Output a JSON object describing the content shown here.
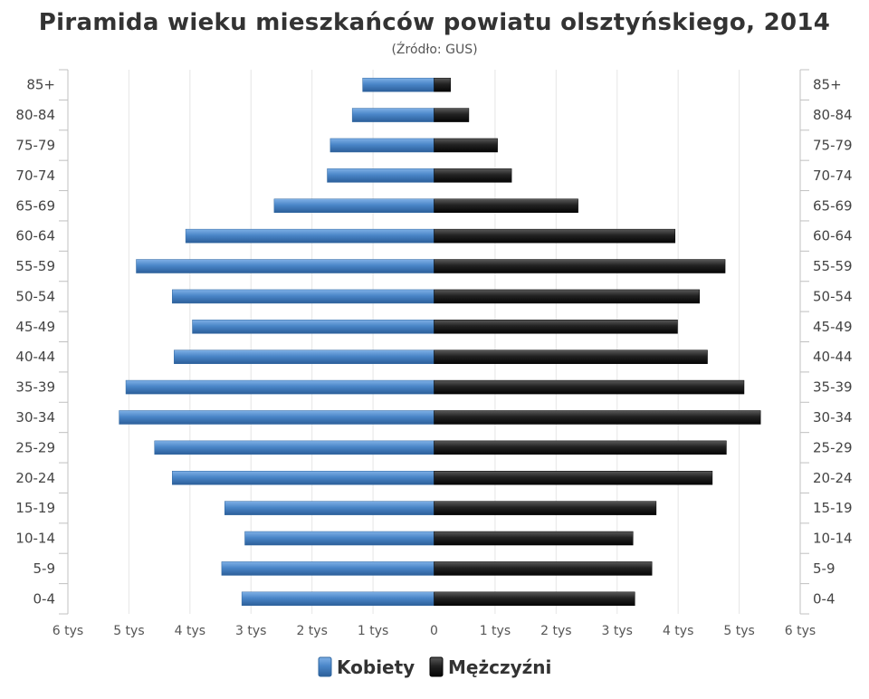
{
  "chart_data": {
    "type": "bar",
    "orientation": "horizontal",
    "title": "Piramida wieku mieszkańców powiatu olsztyńskiego, 2014",
    "subtitle": "(Źródło: GUS)",
    "categories": [
      "85+",
      "80-84",
      "75-79",
      "70-74",
      "65-69",
      "60-64",
      "55-59",
      "50-54",
      "45-49",
      "40-44",
      "35-39",
      "30-34",
      "25-29",
      "20-24",
      "15-19",
      "10-14",
      "5-9",
      "0-4"
    ],
    "series": [
      {
        "name": "Kobiety",
        "color": "#4a86c8",
        "side": "left",
        "values": [
          1170,
          1340,
          1700,
          1750,
          2620,
          4070,
          4880,
          4290,
          3960,
          4260,
          5050,
          5160,
          4580,
          4290,
          3430,
          3100,
          3480,
          3150
        ]
      },
      {
        "name": "Mężczyźni",
        "color": "#222222",
        "side": "right",
        "values": [
          270,
          570,
          1040,
          1270,
          2360,
          3950,
          4770,
          4350,
          3990,
          4480,
          5080,
          5350,
          4790,
          4560,
          3640,
          3260,
          3570,
          3290
        ]
      }
    ],
    "xlim": [
      -6000,
      6000
    ],
    "xticks": [
      {
        "value": -6000,
        "label": "6 tys"
      },
      {
        "value": -5000,
        "label": "5 tys"
      },
      {
        "value": -4000,
        "label": "4 tys"
      },
      {
        "value": -3000,
        "label": "3 tys"
      },
      {
        "value": -2000,
        "label": "2 tys"
      },
      {
        "value": -1000,
        "label": "1 tys"
      },
      {
        "value": 0,
        "label": "0"
      },
      {
        "value": 1000,
        "label": "1 tys"
      },
      {
        "value": 2000,
        "label": "2 tys"
      },
      {
        "value": 3000,
        "label": "3 tys"
      },
      {
        "value": 4000,
        "label": "4 tys"
      },
      {
        "value": 5000,
        "label": "5 tys"
      },
      {
        "value": 6000,
        "label": "6 tys"
      }
    ],
    "grid": true,
    "category_labels_both_sides": true,
    "legend_position": "bottom-center"
  }
}
